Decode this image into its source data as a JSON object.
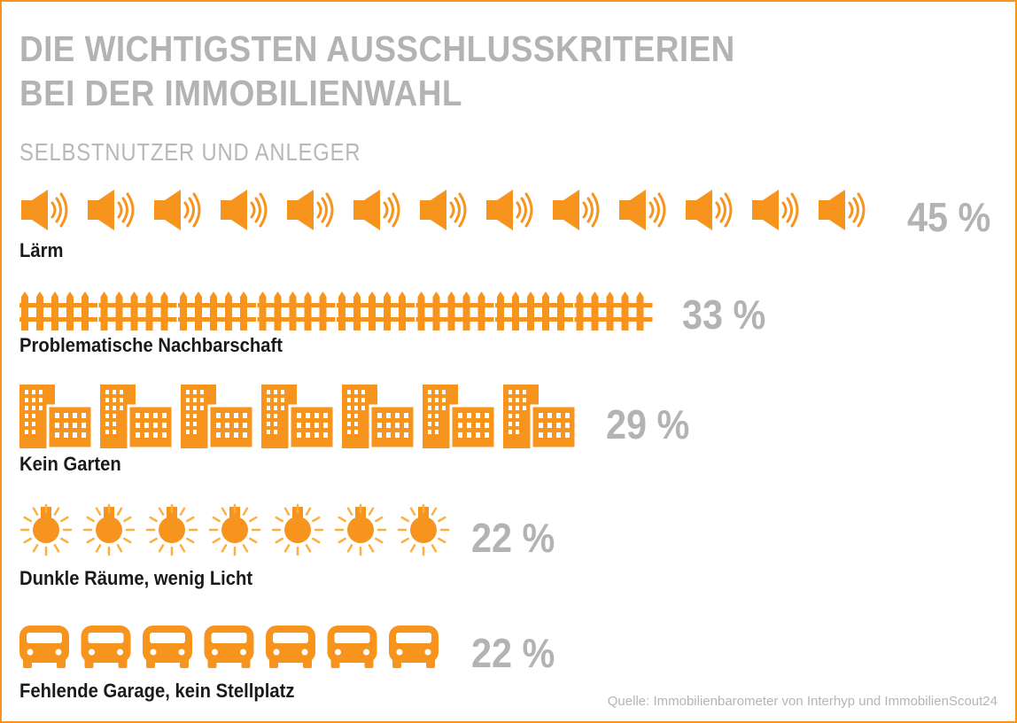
{
  "title_line1": "DIE WICHTIGSTEN AUSSCHLUSSKRITERIEN",
  "title_line2": "BEI DER IMMOBILIENWAHL",
  "subtitle": "SELBSTNUTZER UND ANLEGER",
  "source": "Quelle: Immobilienbarometer von Interhyp und ImmobilienScout24",
  "colors": {
    "icon": "#f7941d",
    "icon_light": "#fbb040",
    "percent": "#b3b3b3",
    "frame": "#f7941d"
  },
  "chart_data": {
    "type": "bar",
    "unit": "%",
    "categories": [
      "Lärm",
      "Problematische Nachbarschaft",
      "Kein Garten",
      "Dunkle Räume, wenig Licht",
      "Fehlende Garage, kein Stellplatz"
    ],
    "values": [
      45,
      33,
      29,
      22,
      22
    ],
    "value_labels": [
      "45 %",
      "33 %",
      "29 %",
      "22 %",
      "22 %"
    ],
    "icons": [
      "speaker-icon",
      "fence-icon",
      "building-icon",
      "lightbulb-icon",
      "car-icon"
    ],
    "icon_counts": [
      13,
      8,
      7,
      7,
      7
    ]
  }
}
